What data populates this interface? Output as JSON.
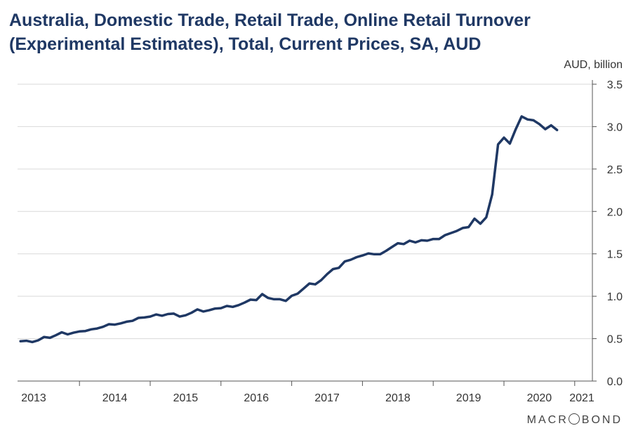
{
  "chart_data": {
    "type": "line",
    "title": "Australia, Domestic Trade, Retail Trade, Online Retail Turnover (Experimental Estimates), Total, Current Prices, SA, AUD",
    "ylabel": "AUD, billion",
    "xlabel": "",
    "ylim": [
      0,
      3.5
    ],
    "yticks": [
      "0.0",
      "0.5",
      "1.0",
      "1.5",
      "2.0",
      "2.5",
      "3.0",
      "3.5"
    ],
    "y_axis_side": "right",
    "grid": true,
    "xticks": [
      "2013",
      "2014",
      "2015",
      "2016",
      "2017",
      "2018",
      "2019",
      "2020",
      "2021"
    ],
    "series": [
      {
        "color": "#1f3864",
        "points": [
          [
            "2013-03",
            0.47
          ],
          [
            "2013-04",
            0.475
          ],
          [
            "2013-05",
            0.46
          ],
          [
            "2013-06",
            0.48
          ],
          [
            "2013-07",
            0.52
          ],
          [
            "2013-08",
            0.51
          ],
          [
            "2013-09",
            0.54
          ],
          [
            "2013-10",
            0.575
          ],
          [
            "2013-11",
            0.55
          ],
          [
            "2013-12",
            0.57
          ],
          [
            "2014-01",
            0.585
          ],
          [
            "2014-02",
            0.59
          ],
          [
            "2014-03",
            0.61
          ],
          [
            "2014-04",
            0.62
          ],
          [
            "2014-05",
            0.64
          ],
          [
            "2014-06",
            0.67
          ],
          [
            "2014-07",
            0.665
          ],
          [
            "2014-08",
            0.68
          ],
          [
            "2014-09",
            0.7
          ],
          [
            "2014-10",
            0.71
          ],
          [
            "2014-11",
            0.745
          ],
          [
            "2014-12",
            0.75
          ],
          [
            "2015-01",
            0.76
          ],
          [
            "2015-02",
            0.785
          ],
          [
            "2015-03",
            0.77
          ],
          [
            "2015-04",
            0.79
          ],
          [
            "2015-05",
            0.795
          ],
          [
            "2015-06",
            0.76
          ],
          [
            "2015-07",
            0.775
          ],
          [
            "2015-08",
            0.805
          ],
          [
            "2015-09",
            0.845
          ],
          [
            "2015-10",
            0.82
          ],
          [
            "2015-11",
            0.835
          ],
          [
            "2015-12",
            0.855
          ],
          [
            "2016-01",
            0.86
          ],
          [
            "2016-02",
            0.885
          ],
          [
            "2016-03",
            0.875
          ],
          [
            "2016-04",
            0.895
          ],
          [
            "2016-05",
            0.925
          ],
          [
            "2016-06",
            0.96
          ],
          [
            "2016-07",
            0.955
          ],
          [
            "2016-08",
            1.025
          ],
          [
            "2016-09",
            0.98
          ],
          [
            "2016-10",
            0.965
          ],
          [
            "2016-11",
            0.965
          ],
          [
            "2016-12",
            0.945
          ],
          [
            "2017-01",
            1.005
          ],
          [
            "2017-02",
            1.03
          ],
          [
            "2017-03",
            1.09
          ],
          [
            "2017-04",
            1.15
          ],
          [
            "2017-05",
            1.14
          ],
          [
            "2017-06",
            1.19
          ],
          [
            "2017-07",
            1.26
          ],
          [
            "2017-08",
            1.32
          ],
          [
            "2017-09",
            1.335
          ],
          [
            "2017-10",
            1.41
          ],
          [
            "2017-11",
            1.43
          ],
          [
            "2017-12",
            1.46
          ],
          [
            "2018-01",
            1.48
          ],
          [
            "2018-02",
            1.505
          ],
          [
            "2018-03",
            1.495
          ],
          [
            "2018-04",
            1.495
          ],
          [
            "2018-05",
            1.535
          ],
          [
            "2018-06",
            1.58
          ],
          [
            "2018-07",
            1.625
          ],
          [
            "2018-08",
            1.615
          ],
          [
            "2018-09",
            1.655
          ],
          [
            "2018-10",
            1.635
          ],
          [
            "2018-11",
            1.66
          ],
          [
            "2018-12",
            1.655
          ],
          [
            "2019-01",
            1.675
          ],
          [
            "2019-02",
            1.675
          ],
          [
            "2019-03",
            1.72
          ],
          [
            "2019-04",
            1.745
          ],
          [
            "2019-05",
            1.77
          ],
          [
            "2019-06",
            1.805
          ],
          [
            "2019-07",
            1.815
          ],
          [
            "2019-08",
            1.915
          ],
          [
            "2019-09",
            1.855
          ],
          [
            "2019-10",
            1.93
          ],
          [
            "2019-11",
            2.2
          ],
          [
            "2019-12",
            2.79
          ],
          [
            "2020-01",
            2.87
          ],
          [
            "2020-02",
            2.8
          ],
          [
            "2020-03",
            2.97
          ],
          [
            "2020-04",
            3.12
          ],
          [
            "2020-05",
            3.085
          ],
          [
            "2020-06",
            3.075
          ],
          [
            "2020-07",
            3.03
          ],
          [
            "2020-08",
            2.97
          ],
          [
            "2020-09",
            3.015
          ],
          [
            "2020-10",
            2.96
          ]
        ]
      }
    ]
  },
  "brand": "MACROBOND",
  "brand_parts": [
    "MACR",
    "BOND"
  ]
}
